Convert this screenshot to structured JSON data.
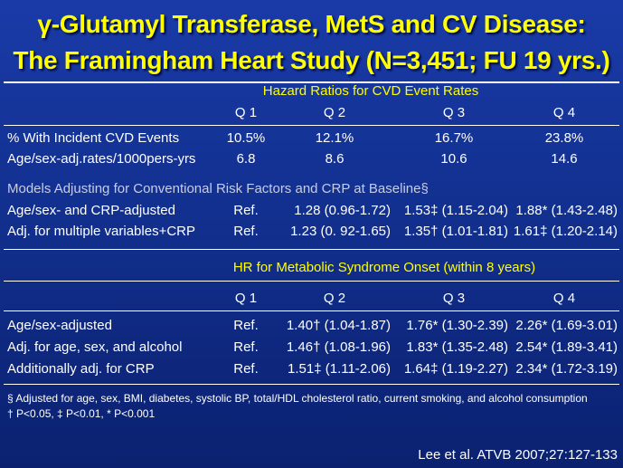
{
  "title": {
    "line1": "γ-Glutamyl Transferase, MetS and CV Disease:",
    "line2": "The Framingham Heart Study (N=3,451; FU 19 yrs.)"
  },
  "section1": {
    "caption": "Hazard Ratios for CVD Event Rates",
    "headers": [
      "Q 1",
      "Q 2",
      "Q 3",
      "Q 4"
    ],
    "rows": [
      {
        "label": "% With Incident CVD Events",
        "values": [
          "10.5%",
          "12.1%",
          "16.7%",
          "23.8%"
        ]
      },
      {
        "label": "Age/sex-adj.rates/1000pers-yrs",
        "values": [
          "6.8",
          "8.6",
          "10.6",
          "14.6"
        ]
      }
    ]
  },
  "section2": {
    "caption": "Models Adjusting for Conventional Risk Factors and CRP at Baseline§",
    "rows": [
      {
        "label": "Age/sex- and CRP-adjusted",
        "values": [
          "Ref.",
          "1.28 (0.96-1.72)",
          "1.53‡ (1.15-2.04)",
          "1.88* (1.43-2.48)"
        ]
      },
      {
        "label": "Adj. for multiple variables+CRP",
        "values": [
          "Ref.",
          "1.23 (0. 92-1.65)",
          "1.35† (1.01-1.81)",
          "1.61‡ (1.20-2.14)"
        ]
      }
    ]
  },
  "section3": {
    "caption": "HR for Metabolic Syndrome Onset (within 8 years)",
    "headers": [
      "Q 1",
      "Q 2",
      "Q 3",
      "Q 4"
    ],
    "rows": [
      {
        "label": "Age/sex-adjusted",
        "values": [
          "Ref.",
          "1.40† (1.04-1.87)",
          "1.76* (1.30-2.39)",
          "2.26* (1.69-3.01)"
        ]
      },
      {
        "label": "Adj. for age, sex, and alcohol",
        "values": [
          "Ref.",
          "1.46† (1.08-1.96)",
          "1.83* (1.35-2.48)",
          "2.54* (1.89-3.41)"
        ]
      },
      {
        "label": "Additionally adj. for CRP",
        "values": [
          "Ref.",
          "1.51‡ (1.11-2.06)",
          "1.64‡ (1.19-2.27)",
          "2.34* (1.72-3.19)"
        ]
      }
    ]
  },
  "footnotes": {
    "line1": "§ Adjusted for age, sex, BMI, diabetes, systolic BP, total/HDL cholesterol ratio, current smoking, and alcohol consumption",
    "line2": "† P<0.05, ‡ P<0.01, * P<0.001"
  },
  "citation": "Lee et al. ATVB 2007;27:127-133"
}
